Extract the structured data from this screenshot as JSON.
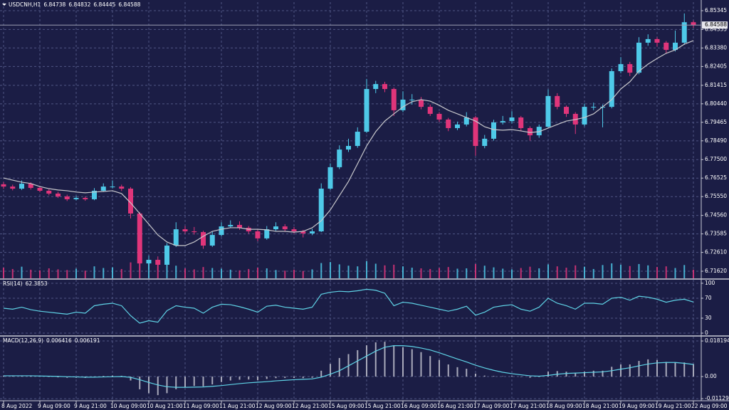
{
  "chart_data": [
    {
      "type": "candlestick",
      "title": "USDCNH,H1",
      "categories": [
        "8 Aug 2022",
        null,
        null,
        null,
        "9 Aug 09:00",
        null,
        null,
        null,
        "9 Aug 21:00",
        null,
        null,
        null,
        "10 Aug 09:00",
        null,
        null,
        null,
        "10 Aug 21:00",
        null,
        null,
        null,
        "11 Aug 09:00",
        null,
        null,
        null,
        "11 Aug 21:00",
        null,
        null,
        null,
        "12 Aug 09:00",
        null,
        null,
        null,
        "12 Aug 21:00",
        null,
        null,
        null,
        "15 Aug 09:00",
        null,
        null,
        null,
        "15 Aug 21:00",
        null,
        null,
        null,
        "16 Aug 09:00",
        null,
        null,
        null,
        "16 Aug 21:00",
        null,
        null,
        null,
        "17 Aug 09:00",
        null,
        null,
        null,
        "17 Aug 21:00",
        null,
        null,
        null,
        "18 Aug 09:00",
        null,
        null,
        null,
        "18 Aug 21:00",
        null,
        null,
        null,
        "19 Aug 09:00",
        null,
        null,
        null,
        "19 Aug 21:00",
        null,
        null,
        null,
        "22 Aug 09:00"
      ],
      "ohlc": [
        [
          6.762,
          6.7632,
          6.7596,
          6.7608
        ],
        [
          6.7608,
          6.7618,
          6.7588,
          6.7597
        ],
        [
          6.7597,
          6.764,
          6.759,
          6.7623
        ],
        [
          6.7623,
          6.763,
          6.7592,
          6.7601
        ],
        [
          6.7601,
          6.761,
          6.7578,
          6.7586
        ],
        [
          6.7586,
          6.7594,
          6.7562,
          6.7571
        ],
        [
          6.7571,
          6.758,
          6.7548,
          6.7556
        ],
        [
          6.7556,
          6.7565,
          6.7532,
          6.7541
        ],
        [
          6.7541,
          6.756,
          6.7535,
          6.7548
        ],
        [
          6.7548,
          6.7556,
          6.7533,
          6.7541
        ],
        [
          6.7541,
          6.76,
          6.7536,
          6.7586
        ],
        [
          6.7586,
          6.7625,
          6.758,
          6.7608
        ],
        [
          6.7608,
          6.764,
          6.7598,
          6.7608
        ],
        [
          6.7608,
          6.7618,
          6.7585,
          6.7597
        ],
        [
          6.7597,
          6.7605,
          6.744,
          6.7466
        ],
        [
          6.7466,
          6.7475,
          6.716,
          6.7203
        ],
        [
          6.7203,
          6.7245,
          6.717,
          6.7222
        ],
        [
          6.7222,
          6.724,
          6.7165,
          6.7196
        ],
        [
          6.7196,
          6.731,
          6.719,
          6.7297
        ],
        [
          6.7297,
          6.742,
          6.729,
          6.7383
        ],
        [
          6.7383,
          6.74,
          6.736,
          6.7372
        ],
        [
          6.7372,
          6.7395,
          6.7355,
          6.7368
        ],
        [
          6.7368,
          6.7375,
          6.728,
          6.7297
        ],
        [
          6.7297,
          6.737,
          6.729,
          6.7353
        ],
        [
          6.7353,
          6.742,
          6.7345,
          6.7398
        ],
        [
          6.7398,
          6.743,
          6.739,
          6.7406
        ],
        [
          6.7406,
          6.7425,
          6.738,
          6.7391
        ],
        [
          6.7391,
          6.74,
          6.736,
          6.7372
        ],
        [
          6.7372,
          6.738,
          6.732,
          6.7335
        ],
        [
          6.7335,
          6.74,
          6.7328,
          6.7383
        ],
        [
          6.7383,
          6.742,
          6.7375,
          6.7398
        ],
        [
          6.7398,
          6.741,
          6.7372,
          6.7383
        ],
        [
          6.7383,
          6.7395,
          6.736,
          6.7372
        ],
        [
          6.7372,
          6.738,
          6.734,
          6.7361
        ],
        [
          6.7361,
          6.7385,
          6.7352,
          6.7372
        ],
        [
          6.7372,
          6.7625,
          6.7368,
          6.7597
        ],
        [
          6.7597,
          6.773,
          6.759,
          6.771
        ],
        [
          6.771,
          6.7825,
          6.77,
          6.7803
        ],
        [
          6.7803,
          6.786,
          6.779,
          6.7822
        ],
        [
          6.7822,
          6.792,
          6.7812,
          6.7897
        ],
        [
          6.7897,
          6.8175,
          6.789,
          6.8122
        ],
        [
          6.8122,
          6.8165,
          6.81,
          6.8148
        ],
        [
          6.8148,
          6.816,
          6.8105,
          6.8122
        ],
        [
          6.8122,
          6.813,
          6.798,
          6.801
        ],
        [
          6.801,
          6.811,
          6.8,
          6.8066
        ],
        [
          6.8066,
          6.8095,
          6.804,
          6.8066
        ],
        [
          6.8066,
          6.808,
          6.8015,
          6.8028
        ],
        [
          6.8028,
          6.804,
          6.798,
          6.7991
        ],
        [
          6.7991,
          6.8,
          6.7948,
          6.7961
        ],
        [
          6.7961,
          6.797,
          6.79,
          6.7916
        ],
        [
          6.7916,
          6.795,
          6.7905,
          6.7935
        ],
        [
          6.7935,
          6.8,
          6.7925,
          6.7972
        ],
        [
          6.7972,
          6.798,
          6.777,
          6.7822
        ],
        [
          6.7822,
          6.788,
          6.781,
          6.786
        ],
        [
          6.786,
          6.796,
          6.785,
          6.7946
        ],
        [
          6.7946,
          6.798,
          6.7935,
          6.7953
        ],
        [
          6.7953,
          6.8005,
          6.794,
          6.7972
        ],
        [
          6.7972,
          6.798,
          6.79,
          6.7916
        ],
        [
          6.7916,
          6.7925,
          6.785,
          6.7878
        ],
        [
          6.7878,
          6.7935,
          6.7865,
          6.7923
        ],
        [
          6.7923,
          6.812,
          6.7915,
          6.8085
        ],
        [
          6.8085,
          6.81,
          6.8015,
          6.8028
        ],
        [
          6.8028,
          6.8035,
          6.7975,
          6.7991
        ],
        [
          6.7991,
          6.8,
          6.7885,
          6.7935
        ],
        [
          6.7935,
          6.8045,
          6.7925,
          6.8028
        ],
        [
          6.8028,
          6.805,
          6.801,
          6.8028
        ],
        [
          6.8028,
          6.804,
          6.792,
          6.8028
        ],
        [
          6.8028,
          6.823,
          6.802,
          6.8216
        ],
        [
          6.8216,
          6.829,
          6.8205,
          6.8253
        ],
        [
          6.8253,
          6.8265,
          6.819,
          6.8208
        ],
        [
          6.8208,
          6.8395,
          6.82,
          6.8366
        ],
        [
          6.8366,
          6.841,
          6.835,
          6.8385
        ],
        [
          6.8385,
          6.8395,
          6.8345,
          6.8366
        ],
        [
          6.8366,
          6.8375,
          6.831,
          6.8328
        ],
        [
          6.8328,
          6.843,
          6.832,
          6.8366
        ],
        [
          6.8366,
          6.852,
          6.8355,
          6.84738
        ],
        [
          6.84738,
          6.84832,
          6.84445,
          6.84588
        ]
      ],
      "up_color": "#4ec9e8",
      "down_color": "#e0357a",
      "ma": {
        "color": "#c8c8cc",
        "values": [
          6.7653,
          6.7642,
          6.7631,
          6.7624,
          6.7608,
          6.7597,
          6.759,
          6.7586,
          6.7579,
          6.7575,
          6.7579,
          6.7582,
          6.7586,
          6.7571,
          6.7522,
          6.7466,
          6.741,
          6.7353,
          6.7316,
          6.7297,
          6.7297,
          6.7316,
          6.7346,
          6.7372,
          6.7383,
          6.7391,
          6.7391,
          6.7383,
          6.7383,
          6.738,
          6.7372,
          6.7372,
          6.7368,
          6.7372,
          6.7391,
          6.7428,
          6.7485,
          6.756,
          6.7635,
          6.7728,
          6.7822,
          6.7897,
          6.7953,
          6.7991,
          6.8028,
          6.8055,
          6.8066,
          6.8058,
          6.8036,
          6.801,
          6.7991,
          6.7972,
          6.7953,
          6.7923,
          6.7908,
          6.7905,
          6.7908,
          6.7901,
          6.7893,
          6.7897,
          6.7916,
          6.7935,
          6.7953,
          6.7961,
          6.7972,
          6.7991,
          6.8028,
          6.8066,
          6.8122,
          6.816,
          6.8216,
          6.8253,
          6.8283,
          6.831,
          6.8328,
          6.8358,
          6.8377
        ]
      },
      "volume": {
        "ylim": [
          0,
          6000
        ],
        "values": [
          3200,
          2800,
          3500,
          2600,
          2400,
          3000,
          2700,
          2500,
          2900,
          2300,
          3600,
          3100,
          3300,
          2800,
          4800,
          5600,
          5200,
          4400,
          4000,
          3800,
          3000,
          2700,
          3400,
          3100,
          2900,
          2600,
          2400,
          2800,
          3200,
          3000,
          2500,
          2300,
          2600,
          2200,
          2700,
          4600,
          4900,
          4200,
          3800,
          3600,
          5200,
          4400,
          3900,
          4100,
          3600,
          3200,
          3000,
          2800,
          3100,
          3400,
          2900,
          3000,
          4300,
          3800,
          3300,
          2900,
          2700,
          3100,
          3500,
          3000,
          4200,
          3600,
          3200,
          3900,
          3500,
          2800,
          4000,
          4500,
          4100,
          3700,
          4300,
          3900,
          3400,
          3600,
          3100,
          4000,
          2600
        ]
      },
      "ylim": [
        6.71246,
        6.85796
      ],
      "yticks": [
        6.85345,
        6.84355,
        {
          "value": 6.8338,
          "label": "6.83380"
        },
        6.82405,
        6.81415,
        {
          "value": 6.8044,
          "label": "6.80440"
        },
        6.79465,
        {
          "value": 6.7849,
          "label": "6.78490"
        },
        {
          "value": 6.775,
          "label": "6.77500"
        },
        6.76525,
        {
          "value": 6.7555,
          "label": "6.75550"
        },
        {
          "value": 6.7456,
          "label": "6.74560"
        },
        6.73585,
        {
          "value": 6.7261,
          "label": "6.72610"
        },
        {
          "value": 6.7162,
          "label": "6.71620"
        }
      ],
      "grid": true
    },
    {
      "type": "line",
      "title": "RSI(14)",
      "color": "#5fd3e6",
      "values": [
        50,
        48,
        52,
        47,
        44,
        42,
        40,
        38,
        42,
        40,
        55,
        58,
        60,
        55,
        35,
        20,
        25,
        22,
        45,
        55,
        52,
        50,
        40,
        52,
        58,
        57,
        53,
        48,
        42,
        54,
        56,
        52,
        50,
        48,
        52,
        78,
        82,
        84,
        83,
        85,
        88,
        86,
        80,
        55,
        62,
        60,
        56,
        52,
        48,
        44,
        48,
        54,
        36,
        42,
        52,
        55,
        57,
        48,
        44,
        52,
        70,
        60,
        55,
        48,
        60,
        60,
        58,
        70,
        72,
        66,
        74,
        72,
        68,
        62,
        66,
        68,
        62.3853
      ],
      "ylim": [
        -4.3,
        107.1
      ],
      "yticks": [
        100,
        70,
        30,
        0
      ],
      "grid": true
    },
    {
      "type": "macd",
      "title": "MACD(12,26,9)",
      "histogram": {
        "color": "#a9aabb",
        "values": [
          0.0004,
          0.0003,
          0.0004,
          0.0002,
          0.0,
          -0.0002,
          -0.0004,
          -0.0006,
          -0.0006,
          -0.0007,
          -0.0002,
          0.0003,
          0.0005,
          0.0004,
          -0.002,
          -0.0065,
          -0.0085,
          -0.0095,
          -0.0085,
          -0.0065,
          -0.0055,
          -0.0048,
          -0.005,
          -0.004,
          -0.0028,
          -0.002,
          -0.0016,
          -0.0015,
          -0.0018,
          -0.0012,
          -0.0008,
          -0.0007,
          -0.0007,
          -0.0008,
          -0.0006,
          0.003,
          0.0065,
          0.0095,
          0.0115,
          0.0135,
          0.016,
          0.0175,
          0.0178,
          0.016,
          0.015,
          0.014,
          0.0125,
          0.0105,
          0.0085,
          0.0062,
          0.0048,
          0.004,
          0.0015,
          0.0005,
          0.0003,
          0.0002,
          0.0003,
          -0.0002,
          -0.0006,
          -0.0002,
          0.0025,
          0.0028,
          0.0025,
          0.0018,
          0.0025,
          0.003,
          0.003,
          0.005,
          0.0062,
          0.0062,
          0.008,
          0.0088,
          0.0085,
          0.0075,
          0.0072,
          0.0072,
          0.006416
        ]
      },
      "signal": {
        "color": "#5fd3e6",
        "values": [
          0.0004,
          0.0004,
          0.0004,
          0.0004,
          0.0003,
          0.0002,
          0.0001,
          -0.0001,
          -0.0002,
          -0.0003,
          -0.0003,
          -0.0002,
          -0.0001,
          0.0,
          -0.0004,
          -0.0016,
          -0.003,
          -0.0043,
          -0.0052,
          -0.0055,
          -0.0055,
          -0.0054,
          -0.0053,
          -0.005,
          -0.0046,
          -0.0041,
          -0.0036,
          -0.0032,
          -0.0029,
          -0.0026,
          -0.0022,
          -0.0019,
          -0.0016,
          -0.0014,
          -0.0012,
          -0.0003,
          0.0012,
          0.003,
          0.0055,
          0.008,
          0.0105,
          0.013,
          0.015,
          0.0158,
          0.0158,
          0.0154,
          0.0146,
          0.0136,
          0.0122,
          0.0106,
          0.009,
          0.0075,
          0.0058,
          0.0044,
          0.0032,
          0.0022,
          0.0015,
          0.0009,
          0.0004,
          0.0002,
          0.0006,
          0.0012,
          0.0016,
          0.0018,
          0.002,
          0.0022,
          0.0024,
          0.003,
          0.0038,
          0.0045,
          0.0055,
          0.0064,
          0.007,
          0.0072,
          0.0072,
          0.0068,
          0.006191
        ]
      },
      "ylim": [
        -0.012,
        0.0204
      ],
      "yticks": [
        0.018194,
        {
          "value": 0,
          "label": "0.00"
        },
        -0.011298
      ],
      "grid": true
    }
  ]
}
